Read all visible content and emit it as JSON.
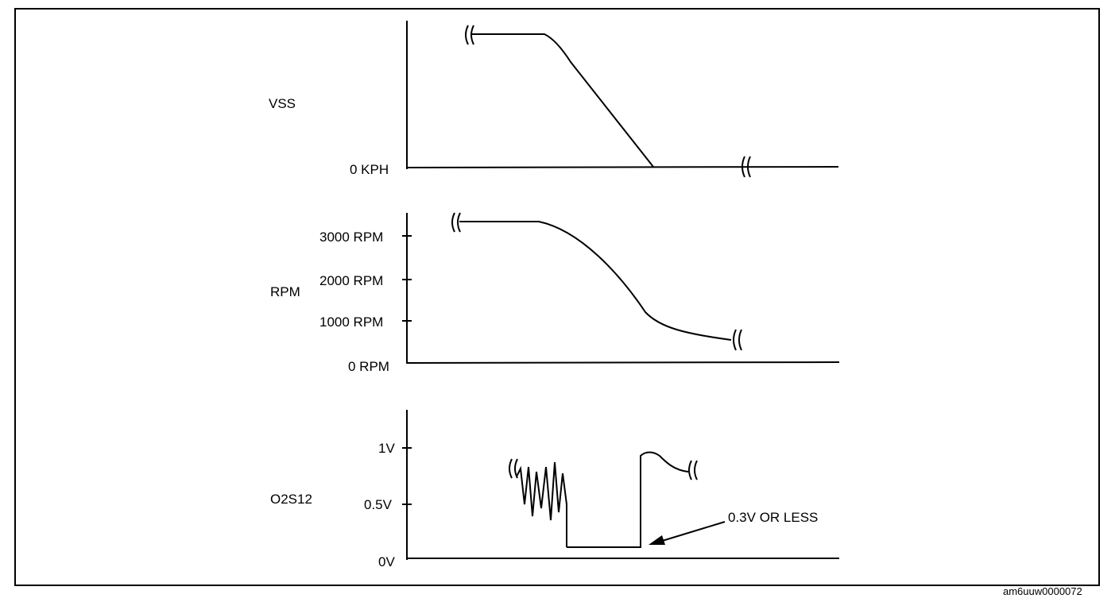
{
  "diagram": {
    "vss": {
      "name": "VSS",
      "zero_label": "0 KPH"
    },
    "rpm": {
      "name": "RPM",
      "ticks": [
        "3000 RPM",
        "2000 RPM",
        "1000 RPM",
        "0 RPM"
      ]
    },
    "o2s": {
      "name": "O2S12",
      "ticks": [
        "1V",
        "0.5V",
        "0V"
      ],
      "annotation": "0.3V OR LESS"
    }
  },
  "footer_code": "am6uuw0000072"
}
